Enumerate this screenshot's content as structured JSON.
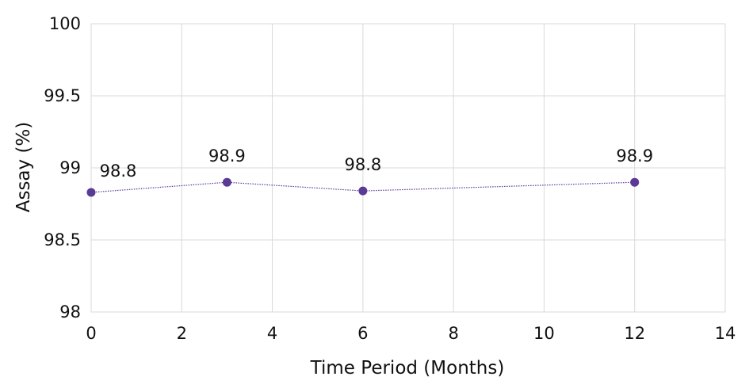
{
  "chart_data": {
    "type": "line",
    "xlabel": "Time Period (Months)",
    "ylabel": "Assay (%)",
    "xlim": [
      0,
      14
    ],
    "ylim": [
      98,
      100
    ],
    "x_ticks": [
      0,
      2,
      4,
      6,
      8,
      10,
      12,
      14
    ],
    "x_tick_labels": [
      "0",
      "2",
      "4",
      "6",
      "8",
      "10",
      "12",
      "14"
    ],
    "y_ticks": [
      98,
      98.5,
      99,
      99.5,
      100
    ],
    "y_tick_labels": [
      "98",
      "98.5",
      "99",
      "99.5",
      "100"
    ],
    "grid": true,
    "legend": "none",
    "series": [
      {
        "x": [
          0,
          3,
          6,
          12
        ],
        "y": [
          98.83,
          98.9,
          98.84,
          98.9
        ],
        "data_labels": [
          "98.8",
          "98.9",
          "98.8",
          "98.9"
        ],
        "color": "#5b3a96",
        "line_style": "dotted",
        "marker": "circle"
      }
    ]
  }
}
